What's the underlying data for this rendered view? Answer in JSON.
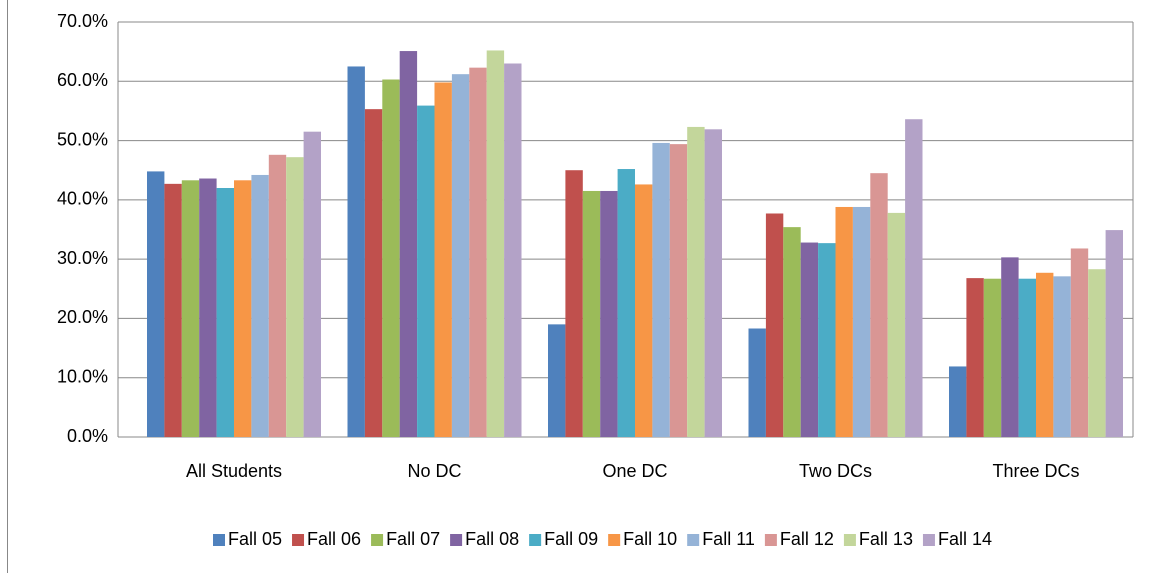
{
  "chart_data": {
    "type": "bar",
    "categories": [
      "All Students",
      "No DC",
      "One DC",
      "Two DCs",
      "Three DCs"
    ],
    "series": [
      {
        "name": "Fall 05",
        "color": "#4F81BD",
        "values": [
          44.8,
          62.5,
          19.0,
          18.3,
          11.9
        ]
      },
      {
        "name": "Fall 06",
        "color": "#C0504D",
        "values": [
          42.7,
          55.3,
          45.0,
          37.7,
          26.8
        ]
      },
      {
        "name": "Fall 07",
        "color": "#9BBB59",
        "values": [
          43.3,
          60.3,
          41.5,
          35.4,
          26.7
        ]
      },
      {
        "name": "Fall 08",
        "color": "#8064A2",
        "values": [
          43.6,
          65.1,
          41.5,
          32.8,
          30.3
        ]
      },
      {
        "name": "Fall 09",
        "color": "#4BACC6",
        "values": [
          42.0,
          55.9,
          45.2,
          32.7,
          26.7
        ]
      },
      {
        "name": "Fall 10",
        "color": "#F79646",
        "values": [
          43.3,
          59.8,
          42.6,
          38.8,
          27.7
        ]
      },
      {
        "name": "Fall 11",
        "color": "#95B3D7",
        "values": [
          44.2,
          61.2,
          49.6,
          38.8,
          27.1
        ]
      },
      {
        "name": "Fall 12",
        "color": "#D99694",
        "values": [
          47.6,
          62.3,
          49.4,
          44.5,
          31.8
        ]
      },
      {
        "name": "Fall 13",
        "color": "#C3D69B",
        "values": [
          47.2,
          65.2,
          52.3,
          37.8,
          28.3
        ]
      },
      {
        "name": "Fall 14",
        "color": "#B3A2C7",
        "values": [
          51.5,
          63.0,
          51.9,
          53.6,
          34.9
        ]
      }
    ],
    "ylim": [
      0,
      70
    ],
    "yticks": [
      {
        "value": 0,
        "label": "0.0%"
      },
      {
        "value": 10,
        "label": "10.0%"
      },
      {
        "value": 20,
        "label": "20.0%"
      },
      {
        "value": 30,
        "label": "30.0%"
      },
      {
        "value": 40,
        "label": "40.0%"
      },
      {
        "value": 50,
        "label": "50.0%"
      },
      {
        "value": 60,
        "label": "60.0%"
      },
      {
        "value": 70,
        "label": "70.0%"
      }
    ],
    "grid": true,
    "legend": "bottom"
  }
}
